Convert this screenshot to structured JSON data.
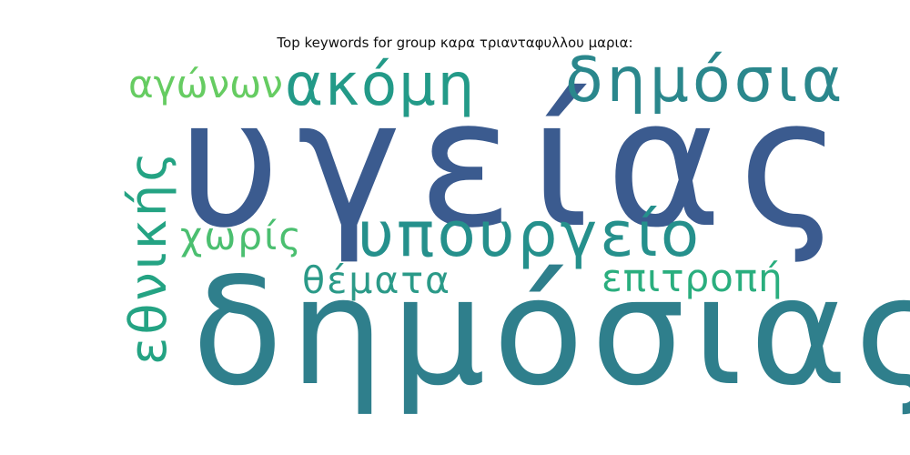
{
  "title": "Top keywords for group καρα τριανταφυλλου μαρια:",
  "wordcloud": {
    "words": [
      {
        "text": "υγείας",
        "color": "#3b5b8f"
      },
      {
        "text": "δημόσιας",
        "color": "#2f7f8c"
      },
      {
        "text": "υπουργείο",
        "color": "#25908c"
      },
      {
        "text": "δημόσια",
        "color": "#2a878c"
      },
      {
        "text": "ακόμη",
        "color": "#239a88"
      },
      {
        "text": "εθνικής",
        "color": "#24a383"
      },
      {
        "text": "αγώνων",
        "color": "#66cc62"
      },
      {
        "text": "χωρίς",
        "color": "#4bbf70"
      },
      {
        "text": "θέματα",
        "color": "#2b9a88"
      },
      {
        "text": "επιτροπή",
        "color": "#2aae7e"
      }
    ]
  }
}
